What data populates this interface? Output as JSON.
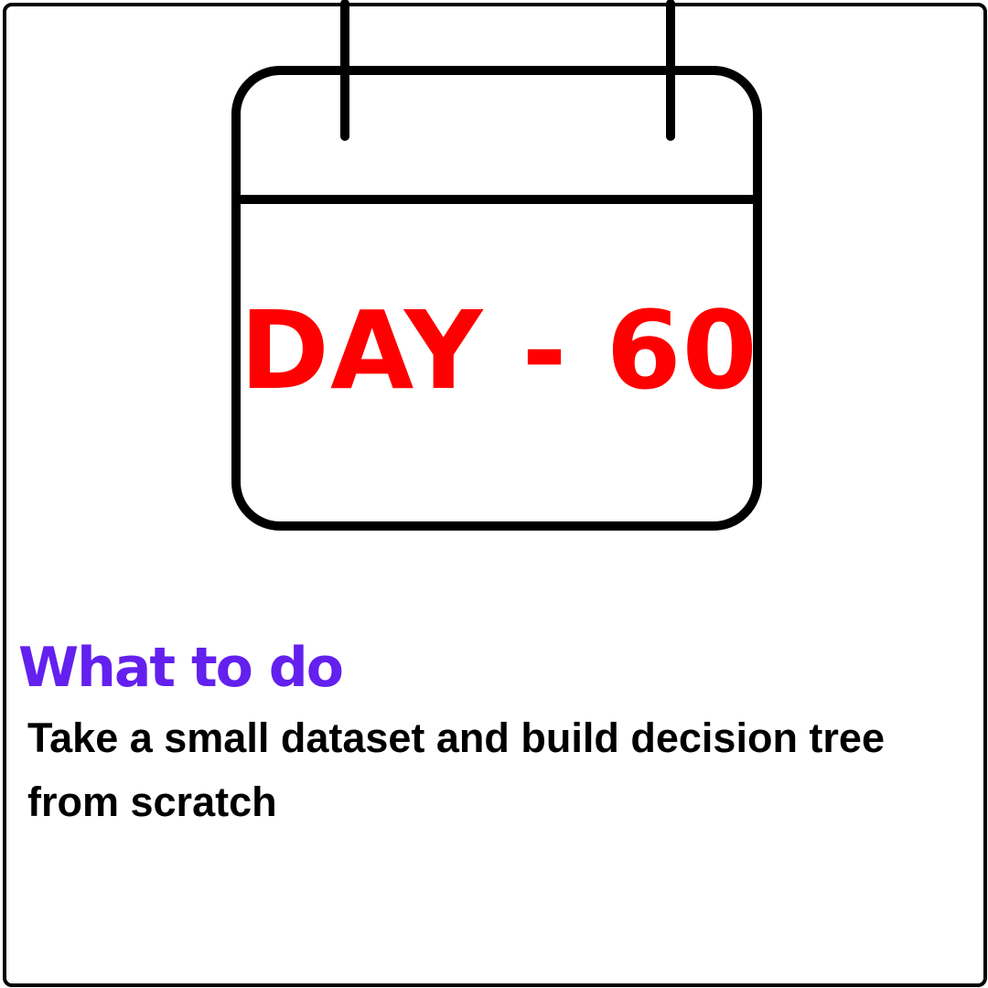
{
  "calendar": {
    "day_label": "DAY - 60",
    "icon": "calendar-icon"
  },
  "section": {
    "heading": "What to do",
    "description": "Take a small dataset and build decision tree from scratch"
  },
  "colors": {
    "day_text": "#ff0000",
    "heading": "#6320ee",
    "text": "#000000",
    "background": "#ffffff"
  }
}
